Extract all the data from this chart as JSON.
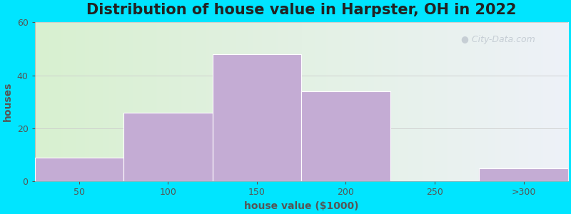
{
  "title": "Distribution of house value in Harpster, OH in 2022",
  "xlabel": "house value ($1000)",
  "ylabel": "houses",
  "bar_labels": [
    "50",
    "100",
    "150",
    "200",
    "250",
    ">300"
  ],
  "bar_values": [
    9,
    26,
    48,
    34,
    0,
    5
  ],
  "bar_color": "#c4acd4",
  "bar_edgecolor": "#ffffff",
  "ylim": [
    0,
    60
  ],
  "yticks": [
    0,
    20,
    40,
    60
  ],
  "background_outer": "#00e5ff",
  "bg_left_color": "#d8f0d0",
  "bg_right_color": "#eef2f8",
  "grid_color": "#cccccc",
  "title_fontsize": 15,
  "label_fontsize": 10,
  "tick_fontsize": 9,
  "title_color": "#222222",
  "label_color": "#555555",
  "tick_color": "#555555",
  "watermark_text": "City-Data.com",
  "watermark_color": "#c0c8d0"
}
